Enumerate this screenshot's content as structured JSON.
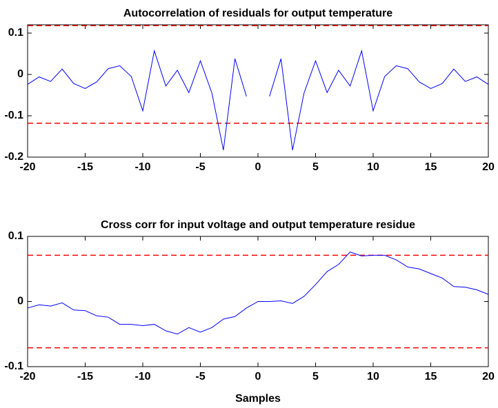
{
  "chart_data": [
    {
      "type": "line",
      "title": "Autocorrelation of residuals for output temperature",
      "x": [
        -20,
        -19,
        -18,
        -17,
        -16,
        -15,
        -14,
        -13,
        -12,
        -11,
        -10,
        -9,
        -8,
        -7,
        -6,
        -5,
        -4,
        -3,
        -2,
        -1,
        0,
        1,
        2,
        3,
        4,
        5,
        6,
        7,
        8,
        9,
        10,
        11,
        12,
        13,
        14,
        15,
        16,
        17,
        18,
        19,
        20
      ],
      "series": [
        {
          "color": "#0000ff",
          "values": [
            -0.024,
            -0.006,
            -0.017,
            0.013,
            -0.022,
            -0.034,
            -0.018,
            0.014,
            0.021,
            -0.005,
            -0.088,
            0.057,
            -0.028,
            0.01,
            -0.044,
            0.033,
            -0.045,
            -0.183,
            0.038,
            -0.053,
            null,
            -0.053,
            0.038,
            -0.183,
            -0.045,
            0.033,
            -0.044,
            0.01,
            -0.028,
            0.057,
            -0.088,
            -0.005,
            0.021,
            0.014,
            -0.018,
            -0.034,
            -0.022,
            0.013,
            -0.017,
            -0.006,
            -0.024
          ]
        }
      ],
      "confidence_bounds": [
        -0.118,
        0.118
      ],
      "bound_color": "#ff0000",
      "xlim": [
        -20,
        20
      ],
      "xticks": [
        -20,
        -15,
        -10,
        -5,
        0,
        5,
        10,
        15,
        20
      ],
      "ylim": [
        -0.2,
        0.12
      ],
      "yticks": [
        -0.2,
        -0.1,
        0,
        0.1
      ]
    },
    {
      "type": "line",
      "title": "Cross corr for input voltage and output temperature residue",
      "x_label": "Samples",
      "x": [
        -20,
        -19,
        -18,
        -17,
        -16,
        -15,
        -14,
        -13,
        -12,
        -11,
        -10,
        -9,
        -8,
        -7,
        -6,
        -5,
        -4,
        -3,
        -2,
        -1,
        0,
        1,
        2,
        3,
        4,
        5,
        6,
        7,
        8,
        9,
        10,
        11,
        12,
        13,
        14,
        15,
        16,
        17,
        18,
        19,
        20
      ],
      "series": [
        {
          "color": "#0000ff",
          "values": [
            -0.01,
            -0.005,
            -0.007,
            -0.002,
            -0.013,
            -0.014,
            -0.022,
            -0.024,
            -0.035,
            -0.035,
            -0.037,
            -0.035,
            -0.045,
            -0.05,
            -0.04,
            -0.047,
            -0.04,
            -0.027,
            -0.023,
            -0.01,
            0.0,
            0.0,
            0.001,
            -0.003,
            0.008,
            0.026,
            0.046,
            0.057,
            0.076,
            0.07,
            0.071,
            0.071,
            0.064,
            0.053,
            0.05,
            0.043,
            0.036,
            0.023,
            0.022,
            0.018,
            0.011
          ]
        }
      ],
      "confidence_bounds": [
        -0.071,
        0.071
      ],
      "bound_color": "#ff0000",
      "xlim": [
        -20,
        20
      ],
      "xticks": [
        -20,
        -15,
        -10,
        -5,
        0,
        5,
        10,
        15,
        20
      ],
      "ylim": [
        -0.1,
        0.1
      ],
      "yticks": [
        -0.1,
        0,
        0.1
      ]
    }
  ]
}
